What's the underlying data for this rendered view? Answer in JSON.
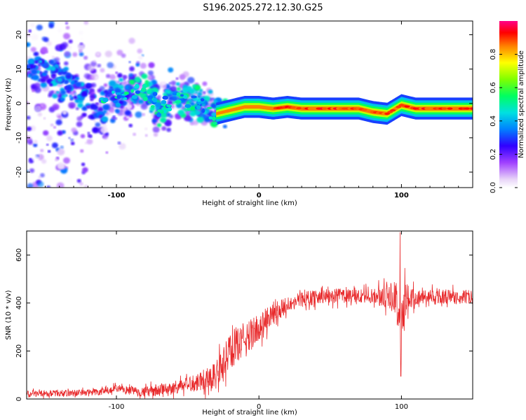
{
  "title": "S196.2025.272.12.30.G25",
  "chart_data": [
    {
      "type": "heatmap",
      "name": "spectrogram",
      "title": "S196.2025.272.12.30.G25",
      "xlabel": "Height of straight line (km)",
      "ylabel": "Frequency (Hz)",
      "xlim": [
        -163,
        150
      ],
      "ylim": [
        -24.5,
        24
      ],
      "x_ticks": [
        -100,
        0,
        100
      ],
      "x_tick_labels": [
        "-100",
        "0",
        "100"
      ],
      "y_ticks": [
        -20,
        -10,
        0,
        10,
        20
      ],
      "y_tick_labels": [
        "-20",
        "-10",
        "0",
        "10",
        "20"
      ],
      "colorbar": {
        "label": "Normalized spectral amplitude",
        "range": [
          0,
          1
        ],
        "ticks": [
          0.0,
          0.2,
          0.4,
          0.6,
          0.8
        ],
        "tick_labels": [
          "0.0",
          "0.2",
          "0.4",
          "0.6",
          "0.8"
        ]
      },
      "ridge": {
        "x": [
          -163,
          -150,
          -135,
          -120,
          -110,
          -100,
          -90,
          -80,
          -70,
          -60,
          -50,
          -40,
          -30,
          -20,
          -10,
          0,
          10,
          20,
          30,
          40,
          50,
          60,
          70,
          80,
          90,
          100,
          110,
          120,
          130,
          140,
          150
        ],
        "freq": [
          12,
          10,
          6,
          2,
          -1,
          1,
          3,
          4,
          -2,
          2,
          1,
          0,
          -3,
          -2,
          -1,
          -1,
          -1.5,
          -1,
          -1.5,
          -1.5,
          -1.5,
          -1.5,
          -1.5,
          -2.5,
          -3,
          -0.5,
          -1.5,
          -1.5,
          -1.5,
          -1.5,
          -1.5
        ],
        "amplitude": [
          0.35,
          0.35,
          0.35,
          0.4,
          0.45,
          0.45,
          0.45,
          0.5,
          0.45,
          0.45,
          0.5,
          0.55,
          0.65,
          0.7,
          0.72,
          0.75,
          0.8,
          0.85,
          0.85,
          0.9,
          0.95,
          0.95,
          0.95,
          0.85,
          0.8,
          0.85,
          0.95,
          0.95,
          0.95,
          0.95,
          0.95
        ]
      }
    },
    {
      "type": "line",
      "name": "snr",
      "xlabel": "Height of straight line (km)",
      "ylabel": "SNR (10 * v/v)",
      "xlim": [
        -163,
        150
      ],
      "ylim": [
        0,
        700
      ],
      "x_ticks": [
        -100,
        0,
        100
      ],
      "x_tick_labels": [
        "-100",
        "0",
        "100"
      ],
      "y_ticks": [
        0,
        200,
        400,
        600
      ],
      "y_tick_labels": [
        "0",
        "200",
        "400",
        "600"
      ],
      "color": "#e8292b",
      "trend": {
        "x": [
          -163,
          -130,
          -110,
          -100,
          -90,
          -80,
          -70,
          -60,
          -50,
          -40,
          -30,
          -25,
          -20,
          -15,
          -10,
          -5,
          0,
          5,
          10,
          15,
          20,
          25,
          30,
          40,
          50,
          60,
          70,
          80,
          90,
          95,
          98,
          100,
          102,
          105,
          110,
          120,
          130,
          140,
          150
        ],
        "snr": [
          22,
          25,
          30,
          40,
          35,
          30,
          35,
          45,
          60,
          80,
          100,
          150,
          200,
          230,
          250,
          270,
          300,
          330,
          350,
          375,
          395,
          405,
          415,
          425,
          430,
          430,
          428,
          430,
          425,
          420,
          380,
          300,
          380,
          420,
          425,
          425,
          425,
          425,
          425
        ]
      },
      "noise": {
        "x": [
          -163,
          -100,
          -50,
          -30,
          -20,
          -10,
          0,
          10,
          20,
          40,
          80,
          95,
          100,
          105,
          110,
          150
        ],
        "amplitude": [
          12,
          16,
          30,
          60,
          80,
          70,
          60,
          45,
          35,
          30,
          30,
          60,
          150,
          60,
          30,
          30
        ]
      },
      "peaks": [
        {
          "x": 99,
          "snr": 695
        },
        {
          "x": 99.6,
          "snr": 95
        }
      ]
    }
  ]
}
